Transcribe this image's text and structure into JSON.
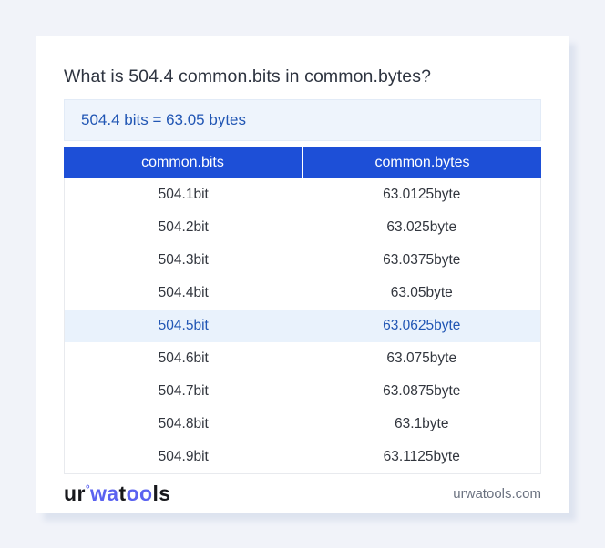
{
  "header": {
    "title": "What is 504.4 common.bits in common.bytes?",
    "result": "504.4 bits = 63.05 bytes"
  },
  "table": {
    "headers": [
      "common.bits",
      "common.bytes"
    ],
    "rows": [
      {
        "bits": "504.1bit",
        "bytes": "63.0125byte",
        "highlight": false
      },
      {
        "bits": "504.2bit",
        "bytes": "63.025byte",
        "highlight": false
      },
      {
        "bits": "504.3bit",
        "bytes": "63.0375byte",
        "highlight": false
      },
      {
        "bits": "504.4bit",
        "bytes": "63.05byte",
        "highlight": false
      },
      {
        "bits": "504.5bit",
        "bytes": "63.0625byte",
        "highlight": true
      },
      {
        "bits": "504.6bit",
        "bytes": "63.075byte",
        "highlight": false
      },
      {
        "bits": "504.7bit",
        "bytes": "63.0875byte",
        "highlight": false
      },
      {
        "bits": "504.8bit",
        "bytes": "63.1byte",
        "highlight": false
      },
      {
        "bits": "504.9bit",
        "bytes": "63.1125byte",
        "highlight": false
      }
    ]
  },
  "footer": {
    "logo_parts": [
      {
        "text": "ur",
        "style": "dark"
      },
      {
        "text": "°",
        "style": "degree"
      },
      {
        "text": "wa",
        "style": "blue"
      },
      {
        "text": "t",
        "style": "dark"
      },
      {
        "text": "oo",
        "style": "blue"
      },
      {
        "text": "ls",
        "style": "dark"
      }
    ],
    "site": "urwatools.com"
  },
  "colors": {
    "page_background": "#f1f3f9",
    "card_background": "#ffffff",
    "header_blue": "#1d4fd7",
    "answer_box_background": "#eef4fc",
    "answer_text_blue": "#2156b4",
    "highlight_row_background": "#e9f2fc",
    "logo_blue": "#5a62f0",
    "body_text": "#32363e"
  }
}
